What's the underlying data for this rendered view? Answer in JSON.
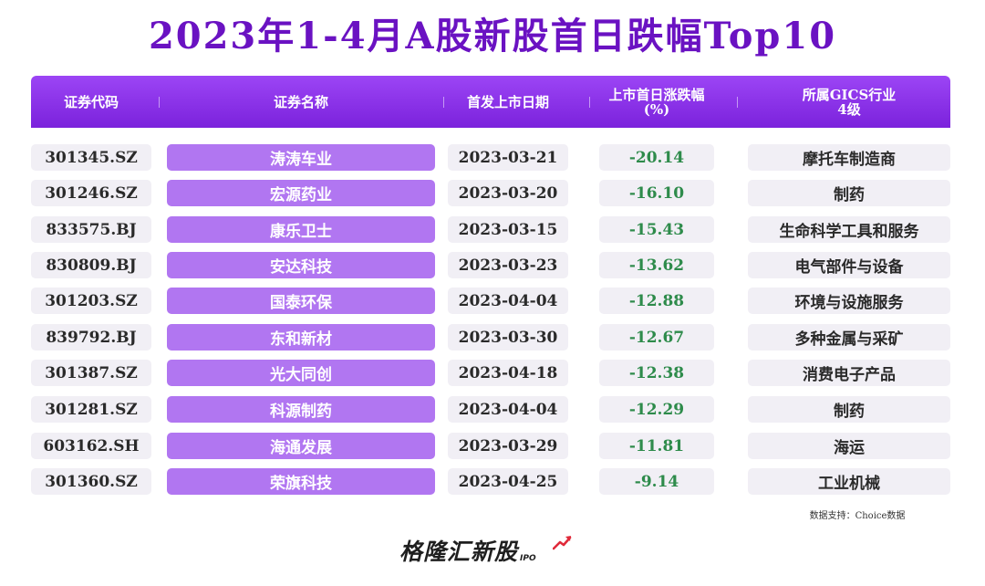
{
  "title": "2023年1-4月A股新股首日跌幅Top10",
  "headers": {
    "code": "证券代码",
    "name": "证券名称",
    "date": "首发上市日期",
    "change_line1": "上市首日涨跌幅",
    "change_line2": "(%)",
    "industry_line1": "所属GICS行业",
    "industry_line2": "4级"
  },
  "rows": [
    {
      "code": "301345.SZ",
      "name": "涛涛车业",
      "date": "2023-03-21",
      "change": "-20.14",
      "industry": "摩托车制造商"
    },
    {
      "code": "301246.SZ",
      "name": "宏源药业",
      "date": "2023-03-20",
      "change": "-16.10",
      "industry": "制药"
    },
    {
      "code": "833575.BJ",
      "name": "康乐卫士",
      "date": "2023-03-15",
      "change": "-15.43",
      "industry": "生命科学工具和服务"
    },
    {
      "code": "830809.BJ",
      "name": "安达科技",
      "date": "2023-03-23",
      "change": "-13.62",
      "industry": "电气部件与设备"
    },
    {
      "code": "301203.SZ",
      "name": "国泰环保",
      "date": "2023-04-04",
      "change": "-12.88",
      "industry": "环境与设施服务"
    },
    {
      "code": "839792.BJ",
      "name": "东和新材",
      "date": "2023-03-30",
      "change": "-12.67",
      "industry": "多种金属与采矿"
    },
    {
      "code": "301387.SZ",
      "name": "光大同创",
      "date": "2023-04-18",
      "change": "-12.38",
      "industry": "消费电子产品"
    },
    {
      "code": "301281.SZ",
      "name": "科源制药",
      "date": "2023-04-04",
      "change": "-12.29",
      "industry": "制药"
    },
    {
      "code": "603162.SH",
      "name": "海通发展",
      "date": "2023-03-29",
      "change": "-11.81",
      "industry": "海运"
    },
    {
      "code": "301360.SZ",
      "name": "荣旗科技",
      "date": "2023-04-25",
      "change": "-9.14",
      "industry": "工业机械"
    }
  ],
  "source": "数据支持：Choice数据",
  "logo": {
    "text": "格隆汇新股",
    "suffix": "IPO"
  },
  "colors": {
    "title": "#6a12c2",
    "header": "#8a30e8",
    "name_cell": "#b176f1",
    "negative": "#2e8b4b",
    "cell_bg": "#f1eff5"
  }
}
